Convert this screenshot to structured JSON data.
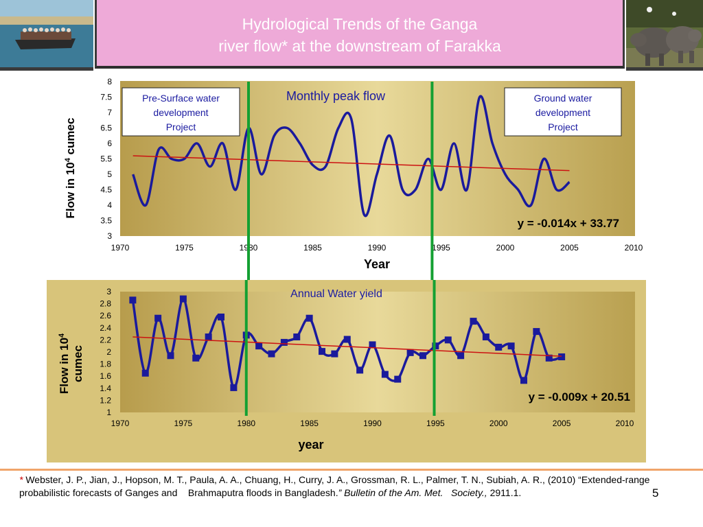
{
  "title": {
    "line1": "Hydrological Trends of the Ganga",
    "line2": "river flow* at the downstream of Farakka"
  },
  "colors": {
    "title_band": "#eeaad8",
    "plot_fill": "#d8c47a",
    "series_line": "#1a1a9c",
    "trend_line": "#cc1111",
    "milestone_line": "#14a032",
    "annotation_text": "#1a1aa0"
  },
  "photos": {
    "left": "boat-with-passengers-photo",
    "right": "rhinoceros-photo"
  },
  "chart_data": [
    {
      "type": "line",
      "title": "Monthly peak flow",
      "xlabel": "Year",
      "ylabel": "Flow in 10",
      "ylabel_sup": "4",
      "ylabel_suffix": " cumec",
      "xlim": [
        1970,
        2010
      ],
      "ylim": [
        3,
        8
      ],
      "x_ticks": [
        "1970",
        "1975",
        "1980",
        "1985",
        "1990",
        "1995",
        "2000",
        "2005",
        "2010"
      ],
      "y_ticks": [
        "3",
        "3.5",
        "4",
        "4.5",
        "5",
        "5.5",
        "6",
        "6.5",
        "7",
        "7.5",
        "8"
      ],
      "grid": false,
      "series": [
        {
          "x": [
            1971,
            1972,
            1973,
            1974,
            1975,
            1976,
            1977,
            1978,
            1979,
            1980,
            1981,
            1982,
            1983,
            1984,
            1985,
            1986,
            1987,
            1988,
            1989,
            1990,
            1991,
            1992,
            1993,
            1994,
            1995,
            1996,
            1997,
            1998,
            1999,
            2000,
            2001,
            2002,
            2003,
            2004,
            2005
          ],
          "values": [
            5.0,
            4.0,
            5.8,
            5.5,
            5.5,
            6.0,
            5.25,
            6.0,
            4.5,
            6.5,
            5.0,
            6.25,
            6.5,
            6.0,
            5.3,
            5.25,
            6.5,
            6.8,
            3.7,
            5.0,
            6.25,
            4.5,
            4.5,
            5.5,
            4.5,
            6.0,
            4.5,
            7.5,
            6.0,
            5.0,
            4.5,
            4.0,
            5.5,
            4.5,
            4.75
          ]
        }
      ],
      "trend": {
        "label": "y = -0.014x + 33.77",
        "x": [
          1971,
          2005
        ],
        "y": [
          5.6,
          5.12
        ]
      },
      "annotations": [
        "Pre-Surface water development Project",
        "Ground water development Project"
      ],
      "milestones": [
        1980,
        1994.3
      ]
    },
    {
      "type": "line",
      "title": "Annual Water yield",
      "xlabel": "year",
      "ylabel": "Flow in 10",
      "ylabel_sup": "4",
      "ylabel_line2": "cumec",
      "xlim": [
        1970,
        2010
      ],
      "ylim": [
        1,
        3
      ],
      "x_ticks": [
        "1970",
        "1975",
        "1980",
        "1985",
        "1990",
        "1995",
        "2000",
        "2005",
        "2010"
      ],
      "y_ticks": [
        "1",
        "1.2",
        "1.4",
        "1.6",
        "1.8",
        "2",
        "2.2",
        "2.4",
        "2.6",
        "2.8",
        "3"
      ],
      "grid": false,
      "series": [
        {
          "x": [
            1971,
            1972,
            1973,
            1974,
            1975,
            1976,
            1977,
            1978,
            1979,
            1980,
            1981,
            1982,
            1983,
            1984,
            1985,
            1986,
            1987,
            1988,
            1989,
            1990,
            1991,
            1992,
            1993,
            1994,
            1995,
            1996,
            1997,
            1998,
            1999,
            2000,
            2001,
            2002,
            2003,
            2004,
            2005
          ],
          "values": [
            2.86,
            1.65,
            2.56,
            1.94,
            2.88,
            1.9,
            2.25,
            2.58,
            1.41,
            2.28,
            2.1,
            1.97,
            2.16,
            2.25,
            2.56,
            2.01,
            1.97,
            2.21,
            1.7,
            2.12,
            1.63,
            1.55,
            1.99,
            1.94,
            2.1,
            2.2,
            1.94,
            2.51,
            2.25,
            2.08,
            2.1,
            1.53,
            2.34,
            1.9,
            1.92
          ]
        }
      ],
      "trend": {
        "label": "y = -0.009x + 20.51",
        "x": [
          1971,
          2005
        ],
        "y": [
          2.25,
          1.93
        ]
      },
      "milestones": [
        1980,
        1994.9
      ]
    }
  ],
  "footnote": {
    "star": "*",
    "authors": " Webster, J. P., Jian, J., Hopson, M. T., Paula, A. A., Chuang, H., Curry, J. A., Grossman, R. L., Palmer, T. N., Subiah, A. R., (2010) “Extended-range probabilistic forecasts of Ganges and    Brahmaputra floods in Bangladesh.",
    "journal": "” Bulletin of the Am. Met.   Society.,",
    "pages": " 2911.1."
  },
  "page_number": "5"
}
